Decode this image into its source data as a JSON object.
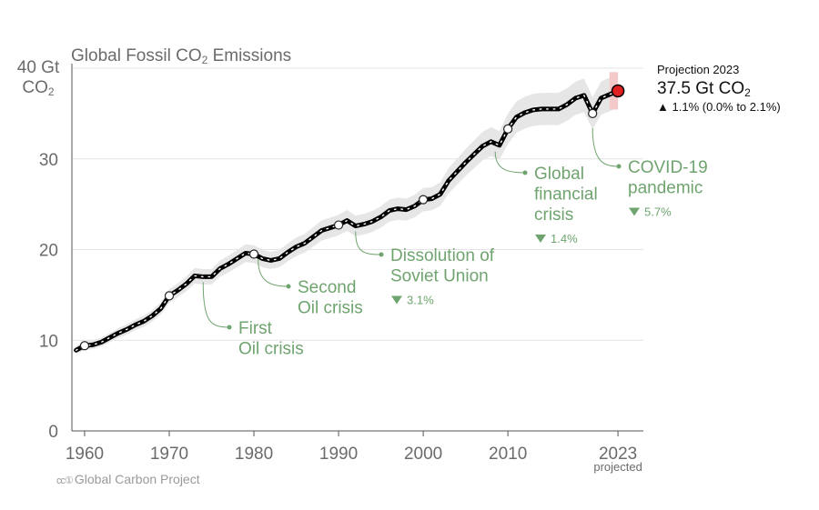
{
  "title_main": "Global Fossil CO",
  "title_sub": "2",
  "title_rest": " Emissions",
  "y_unit_line1": "40 Gt",
  "y_unit_line2_main": "CO",
  "y_unit_line2_sub": "2",
  "projection": {
    "heading": "Projection 2023",
    "value_main": "37.5 Gt CO",
    "value_sub": "2",
    "change": "1.1% (0.0% to 2.1%)"
  },
  "credit": "Global Carbon Project",
  "colors": {
    "line": "#000000",
    "band": "#e6e6e6",
    "annotation": "#6fa46f",
    "projected": "#e02020",
    "axis": "#555555"
  },
  "chart_data": {
    "type": "line",
    "xlim": [
      1958.5,
      2026
    ],
    "ylim": [
      0,
      40
    ],
    "xticks": [
      1960,
      1970,
      1980,
      1990,
      2000,
      2010,
      2023
    ],
    "x_tick_labels": [
      "1960",
      "1970",
      "1980",
      "1990",
      "2000",
      "2010",
      "2023"
    ],
    "x_tick_note": "projected",
    "yticks": [
      0,
      10,
      20,
      30,
      40
    ],
    "y_tick_labels": [
      "0",
      "10",
      "20",
      "30",
      ""
    ],
    "grid": true,
    "x": [
      1959,
      1960,
      1961,
      1962,
      1963,
      1964,
      1965,
      1966,
      1967,
      1968,
      1969,
      1970,
      1971,
      1972,
      1973,
      1974,
      1975,
      1976,
      1977,
      1978,
      1979,
      1980,
      1981,
      1982,
      1983,
      1984,
      1985,
      1986,
      1987,
      1988,
      1989,
      1990,
      1991,
      1992,
      1993,
      1994,
      1995,
      1996,
      1997,
      1998,
      1999,
      2000,
      2001,
      2002,
      2003,
      2004,
      2005,
      2006,
      2007,
      2008,
      2009,
      2010,
      2011,
      2012,
      2013,
      2014,
      2015,
      2016,
      2017,
      2018,
      2019,
      2020,
      2021,
      2022,
      2023
    ],
    "y": [
      8.9,
      9.4,
      9.5,
      9.8,
      10.3,
      10.8,
      11.2,
      11.7,
      12.1,
      12.7,
      13.5,
      14.9,
      15.5,
      16.2,
      17.1,
      17.0,
      17.0,
      17.9,
      18.4,
      19.0,
      19.6,
      19.5,
      19.0,
      18.8,
      19.0,
      19.7,
      20.3,
      20.7,
      21.4,
      22.1,
      22.4,
      22.7,
      23.2,
      22.6,
      22.8,
      23.1,
      23.6,
      24.3,
      24.5,
      24.4,
      24.8,
      25.5,
      25.6,
      26.1,
      27.6,
      28.6,
      29.6,
      30.5,
      31.4,
      31.9,
      31.5,
      33.3,
      34.6,
      35.1,
      35.4,
      35.5,
      35.5,
      35.5,
      36.0,
      36.7,
      37.0,
      35.0,
      36.7,
      37.1,
      37.5
    ],
    "uncertainty_frac": 0.05,
    "markers": [
      1960,
      1970,
      1980,
      1990,
      2000,
      2010,
      2020
    ],
    "projected_point": {
      "x": 2023,
      "y": 37.5
    },
    "annotations": [
      {
        "lines": [
          "First",
          "Oil crisis"
        ],
        "change": ""
      },
      {
        "lines": [
          "Second",
          "Oil crisis"
        ],
        "change": ""
      },
      {
        "lines": [
          "Dissolution of",
          "Soviet Union"
        ],
        "change": "3.1%"
      },
      {
        "lines": [
          "Global",
          "financial",
          "crisis"
        ],
        "change": "1.4%"
      },
      {
        "lines": [
          "COVID-19",
          "pandemic"
        ],
        "change": "5.7%"
      }
    ]
  }
}
